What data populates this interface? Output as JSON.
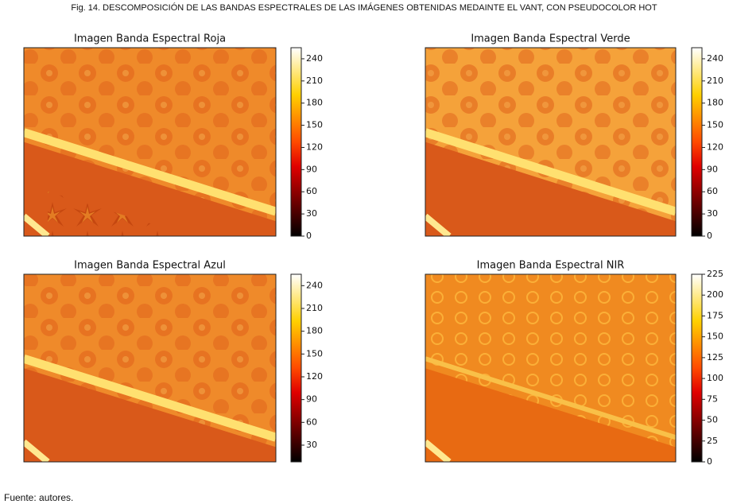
{
  "caption": "Fig. 14. DESCOMPOSICIÓN DE LAS BANDAS ESPECTRALES DE LAS IMÁGENES OBTENIDAS MEDAINTE EL VANT, CON PSEUDOCOLOR HOT",
  "panels": [
    {
      "title": "Imagen Banda Espectral Roja",
      "colorbar": {
        "lim": [
          0,
          255
        ],
        "ticks": [
          0,
          30,
          60,
          90,
          120,
          150,
          180,
          210,
          240
        ]
      }
    },
    {
      "title": "Imagen Banda Espectral Verde",
      "colorbar": {
        "lim": [
          0,
          255
        ],
        "ticks": [
          0,
          30,
          60,
          90,
          120,
          150,
          180,
          210,
          240
        ]
      }
    },
    {
      "title": "Imagen Banda Espectral Azul",
      "colorbar": {
        "lim": [
          8,
          255
        ],
        "ticks": [
          30,
          60,
          90,
          120,
          150,
          180,
          210,
          240
        ]
      }
    },
    {
      "title": "Imagen Banda Espectral NIR",
      "colorbar": {
        "lim": [
          0,
          225
        ],
        "ticks": [
          0,
          25,
          50,
          75,
          100,
          125,
          150,
          175,
          200,
          225
        ]
      }
    }
  ],
  "source": "Fuente: autores."
}
